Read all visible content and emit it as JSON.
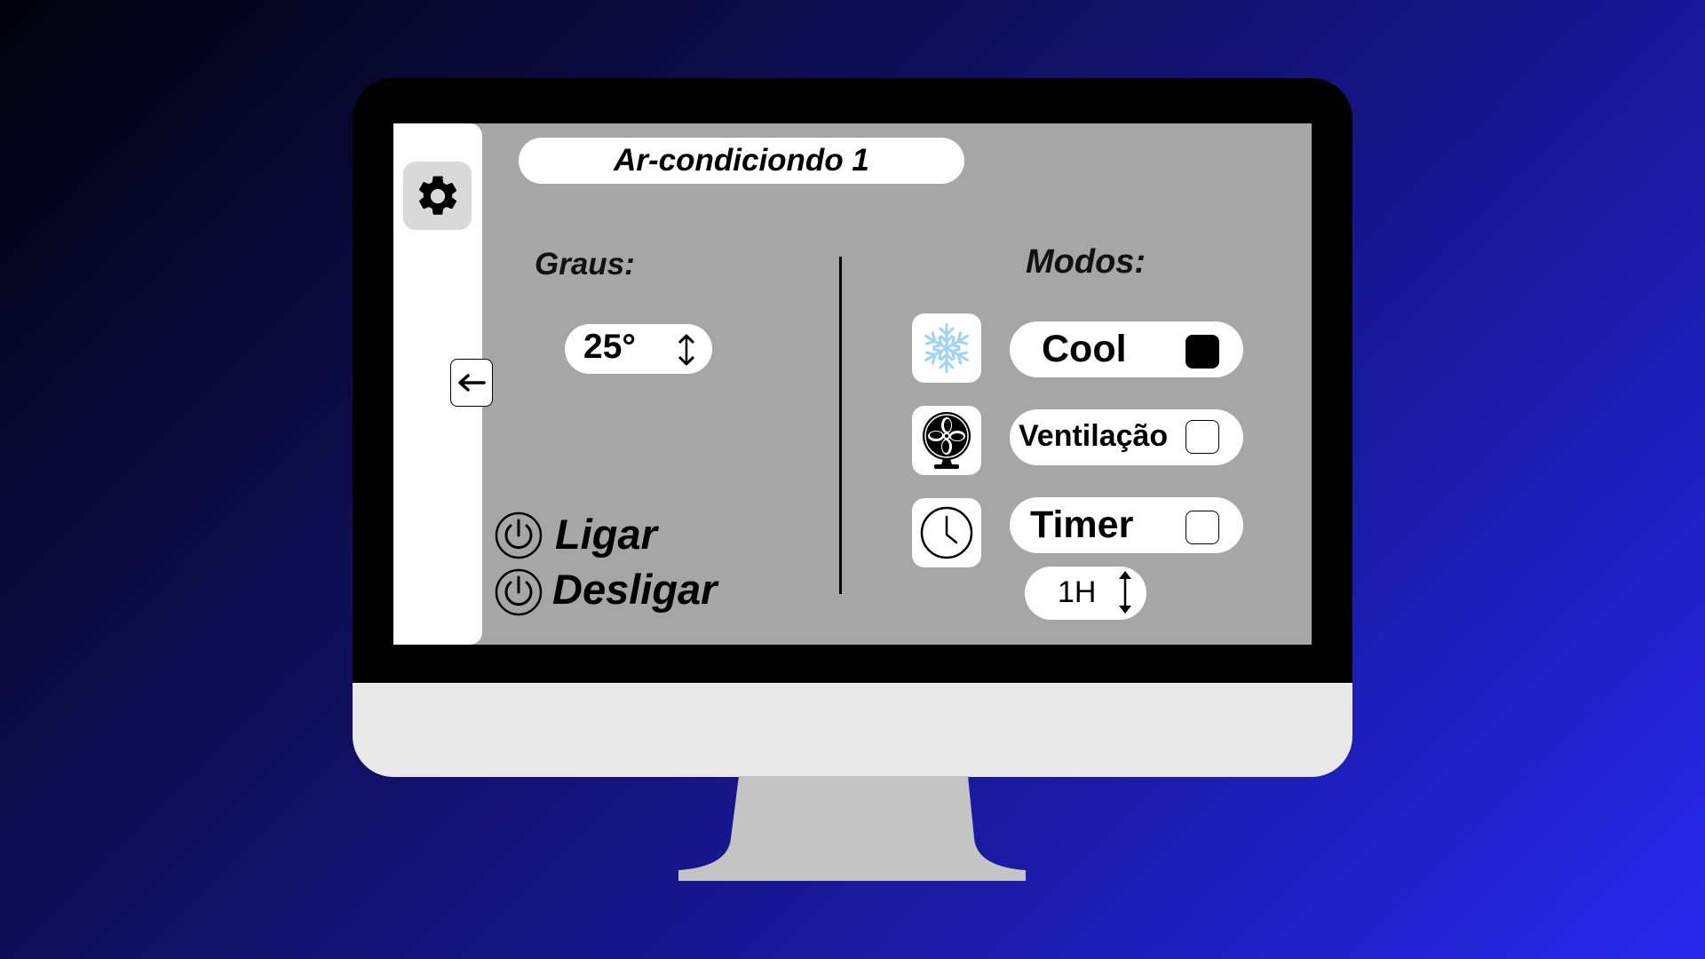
{
  "device": {
    "title": "Ar-condiciondo 1"
  },
  "sidebar": {
    "settings_icon": "gear-icon",
    "back_icon": "arrow-left-icon"
  },
  "temperature": {
    "label": "Graus:",
    "value": "25°",
    "stepper_icon": "up-down-arrows-icon"
  },
  "power": {
    "on_label": "Ligar",
    "off_label": "Desligar",
    "icon": "power-icon"
  },
  "modes": {
    "label": "Modos:",
    "items": [
      {
        "label": "Cool",
        "icon": "snowflake-icon",
        "checked": true
      },
      {
        "label": "Ventilação",
        "icon": "fan-icon",
        "checked": false
      },
      {
        "label": "Timer",
        "icon": "clock-icon",
        "checked": false
      }
    ],
    "timer_value": "1H"
  },
  "colors": {
    "screen_bg": "#a6a6a6",
    "snowflake": "#9fd3f5"
  }
}
